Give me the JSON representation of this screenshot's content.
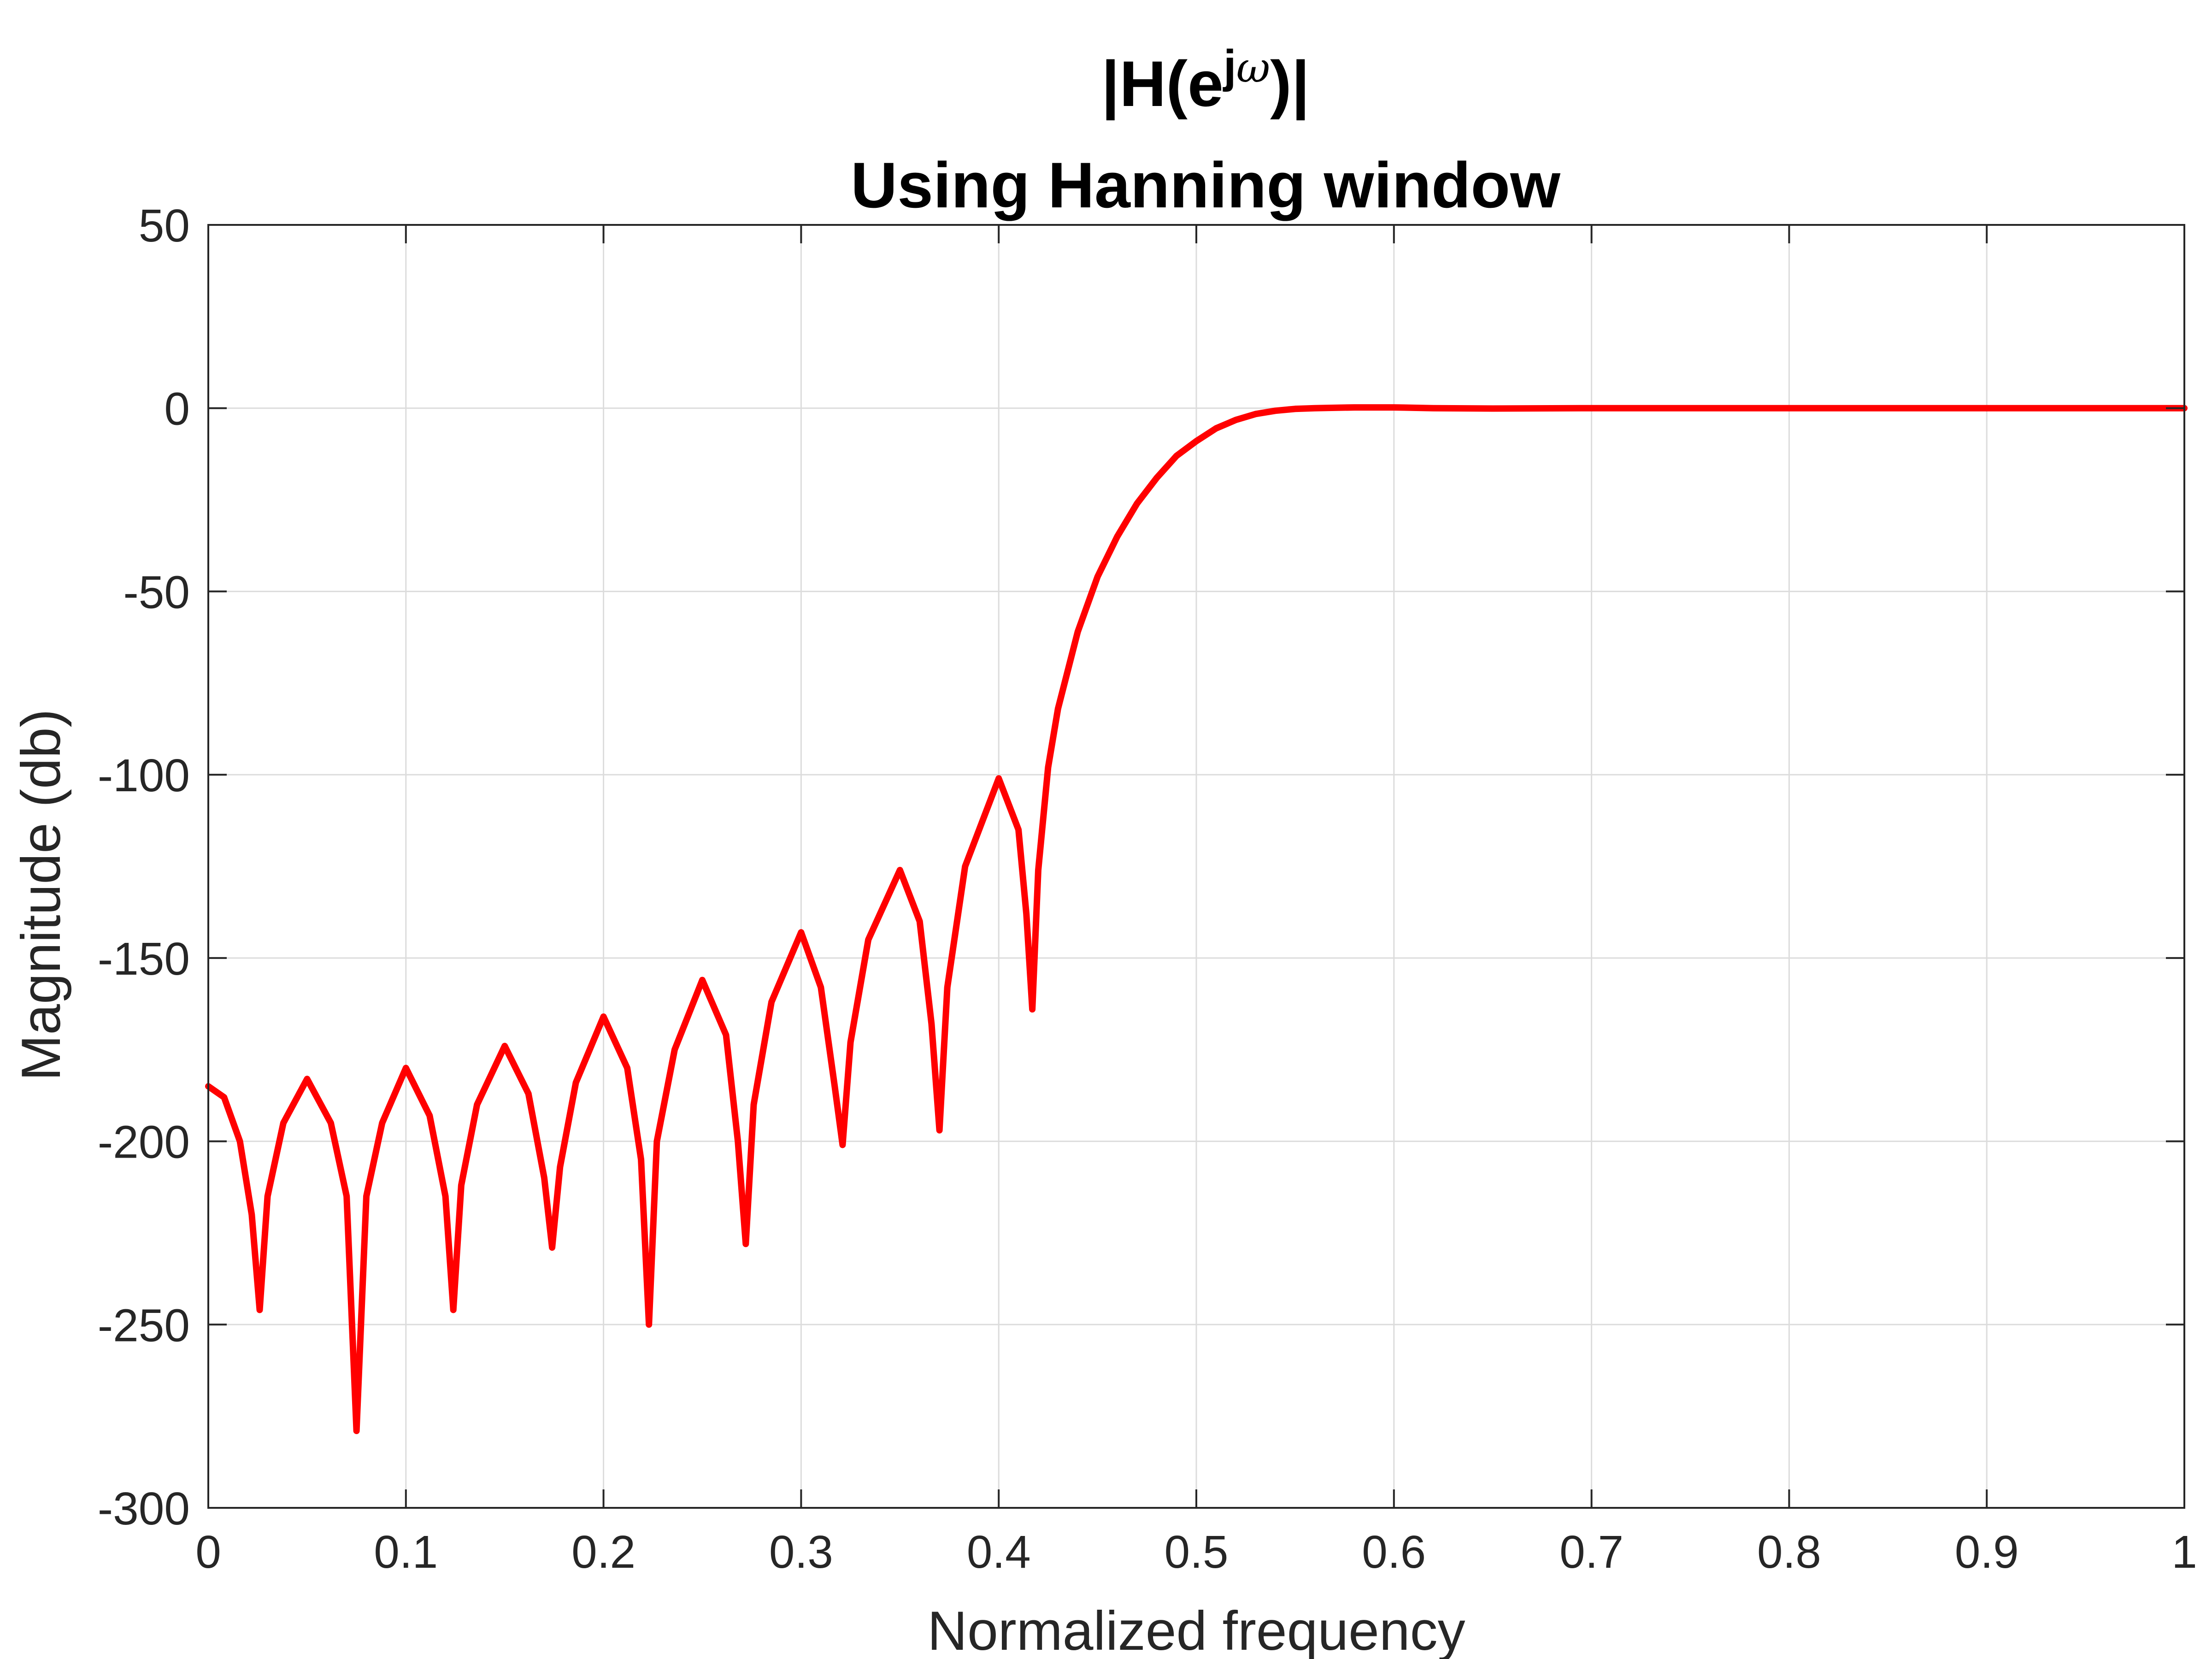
{
  "chart_data": {
    "type": "line",
    "title": {
      "main": "|H(e",
      "superscript_j": "j",
      "superscript_omega": "ω",
      "close": ")|",
      "line2": "Using Hanning window"
    },
    "xlabel": "Normalized frequency",
    "ylabel": "Magnitude (db)",
    "xlim": [
      0,
      1
    ],
    "ylim": [
      -300,
      50
    ],
    "xticks": [
      "0",
      "0.1",
      "0.2",
      "0.3",
      "0.4",
      "0.5",
      "0.6",
      "0.7",
      "0.8",
      "0.9",
      "1"
    ],
    "xtick_values": [
      0,
      0.1,
      0.2,
      0.3,
      0.4,
      0.5,
      0.6,
      0.7,
      0.8,
      0.9,
      1
    ],
    "yticks": [
      "50",
      "0",
      "-50",
      "-100",
      "-150",
      "-200",
      "-250",
      "-300"
    ],
    "ytick_values": [
      50,
      0,
      -50,
      -100,
      -150,
      -200,
      -250,
      -300
    ],
    "grid": true,
    "series": [
      {
        "color": "#ff0000",
        "x": [
          0,
          0.008,
          0.016,
          0.022,
          0.026,
          0.03,
          0.038,
          0.05,
          0.062,
          0.07,
          0.075,
          0.08,
          0.088,
          0.1,
          0.112,
          0.12,
          0.124,
          0.128,
          0.136,
          0.15,
          0.162,
          0.17,
          0.174,
          0.178,
          0.186,
          0.2,
          0.212,
          0.219,
          0.223,
          0.227,
          0.236,
          0.25,
          0.262,
          0.268,
          0.272,
          0.276,
          0.285,
          0.3,
          0.31,
          0.317,
          0.321,
          0.325,
          0.334,
          0.35,
          0.36,
          0.366,
          0.37,
          0.374,
          0.383,
          0.4,
          0.41,
          0.414,
          0.417,
          0.42,
          0.425,
          0.43,
          0.44,
          0.45,
          0.46,
          0.47,
          0.48,
          0.49,
          0.5,
          0.51,
          0.52,
          0.53,
          0.54,
          0.55,
          0.56,
          0.57,
          0.58,
          0.6,
          0.62,
          0.65,
          0.7,
          0.8,
          0.9,
          1.0
        ],
        "y": [
          -185,
          -188,
          -200,
          -220,
          -246,
          -215,
          -195,
          -183,
          -195,
          -215,
          -279,
          -215,
          -195,
          -180,
          -193,
          -215,
          -246,
          -212,
          -190,
          -174,
          -187,
          -210,
          -229,
          -207,
          -184,
          -166,
          -180,
          -205,
          -250,
          -200,
          -175,
          -156,
          -171,
          -200,
          -228,
          -190,
          -162,
          -143,
          -158,
          -185,
          -201,
          -173,
          -145,
          -126,
          -140,
          -168,
          -197,
          -158,
          -125,
          -101,
          -115,
          -138,
          -164,
          -126,
          -98,
          -82,
          -61,
          -46,
          -35,
          -26,
          -19,
          -13,
          -9,
          -5.5,
          -3.2,
          -1.6,
          -0.7,
          -0.2,
          0,
          0.1,
          0.2,
          0.2,
          0,
          -0.1,
          0,
          0,
          0,
          0
        ]
      }
    ]
  }
}
